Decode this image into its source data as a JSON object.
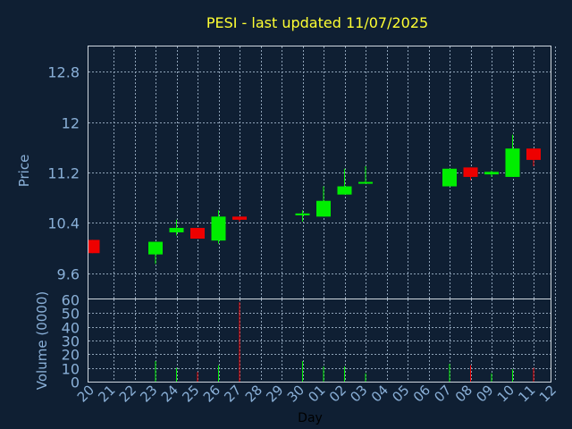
{
  "chart_data": [
    {
      "type": "candlestick",
      "title": "PESI - last updated 11/07/2025",
      "ylabel": "Price",
      "ylim": [
        9.2,
        13.2
      ],
      "yticks": [
        "9.6",
        "10.4",
        "11.2",
        "12",
        "12.8"
      ],
      "grid": true,
      "categories": [
        "20",
        "21",
        "22",
        "23",
        "24",
        "25",
        "26",
        "27",
        "28",
        "29",
        "30",
        "01",
        "02",
        "03",
        "04",
        "05",
        "06",
        "07",
        "08",
        "09",
        "10",
        "11",
        "12"
      ],
      "candles": [
        {
          "day": "20",
          "open": 10.13,
          "close": 9.92,
          "high": 10.13,
          "low": 9.92
        },
        {
          "day": "23",
          "open": 9.9,
          "close": 10.1,
          "high": 10.1,
          "low": 9.75
        },
        {
          "day": "24",
          "open": 10.25,
          "close": 10.32,
          "high": 10.45,
          "low": 10.2
        },
        {
          "day": "25",
          "open": 10.32,
          "close": 10.15,
          "high": 10.32,
          "low": 10.15
        },
        {
          "day": "26",
          "open": 10.12,
          "close": 10.5,
          "high": 10.6,
          "low": 10.07
        },
        {
          "day": "27",
          "open": 10.5,
          "close": 10.45,
          "high": 10.5,
          "low": 10.42
        },
        {
          "day": "30",
          "open": 10.52,
          "close": 10.55,
          "high": 10.6,
          "low": 10.42
        },
        {
          "day": "01",
          "open": 10.5,
          "close": 10.75,
          "high": 10.98,
          "low": 10.5
        },
        {
          "day": "02",
          "open": 10.85,
          "close": 10.98,
          "high": 11.26,
          "low": 10.85
        },
        {
          "day": "03",
          "open": 11.03,
          "close": 11.05,
          "high": 11.3,
          "low": 11.03
        },
        {
          "day": "07",
          "open": 10.98,
          "close": 11.26,
          "high": 11.26,
          "low": 10.98
        },
        {
          "day": "08",
          "open": 11.28,
          "close": 11.13,
          "high": 11.28,
          "low": 11.08
        },
        {
          "day": "09",
          "open": 11.17,
          "close": 11.21,
          "high": 11.23,
          "low": 11.13
        },
        {
          "day": "10",
          "open": 11.13,
          "close": 11.58,
          "high": 11.8,
          "low": 11.13
        },
        {
          "day": "11",
          "open": 11.58,
          "close": 11.4,
          "high": 11.58,
          "low": 11.3
        }
      ]
    },
    {
      "type": "bar",
      "xlabel": "Day",
      "ylabel": "Volume (0000)",
      "ylim": [
        0,
        60
      ],
      "yticks": [
        "0",
        "10",
        "20",
        "30",
        "40",
        "50",
        "60"
      ],
      "grid": true,
      "categories": [
        "20",
        "21",
        "22",
        "23",
        "24",
        "25",
        "26",
        "27",
        "28",
        "29",
        "30",
        "01",
        "02",
        "03",
        "04",
        "05",
        "06",
        "07",
        "08",
        "09",
        "10",
        "11",
        "12"
      ],
      "bars": [
        {
          "day": "23",
          "value": 15,
          "direction": "up"
        },
        {
          "day": "24",
          "value": 10,
          "direction": "up"
        },
        {
          "day": "25",
          "value": 7,
          "direction": "down"
        },
        {
          "day": "26",
          "value": 12,
          "direction": "up"
        },
        {
          "day": "27",
          "value": 58,
          "direction": "down"
        },
        {
          "day": "30",
          "value": 15,
          "direction": "up"
        },
        {
          "day": "01",
          "value": 11,
          "direction": "up"
        },
        {
          "day": "02",
          "value": 11,
          "direction": "up"
        },
        {
          "day": "03",
          "value": 6,
          "direction": "up"
        },
        {
          "day": "07",
          "value": 13,
          "direction": "up"
        },
        {
          "day": "08",
          "value": 12,
          "direction": "down"
        },
        {
          "day": "09",
          "value": 6,
          "direction": "up"
        },
        {
          "day": "10",
          "value": 9,
          "direction": "up"
        },
        {
          "day": "11",
          "value": 10,
          "direction": "down"
        }
      ]
    }
  ],
  "colors": {
    "background": "#0f1f33",
    "axis_text": "#8ab0d8",
    "title": "#ffff33",
    "grid": "#8fa3b8",
    "frame": "#d0d8e0",
    "up": "#00ee00",
    "down": "#ee0000",
    "xlabel": "#000000"
  }
}
